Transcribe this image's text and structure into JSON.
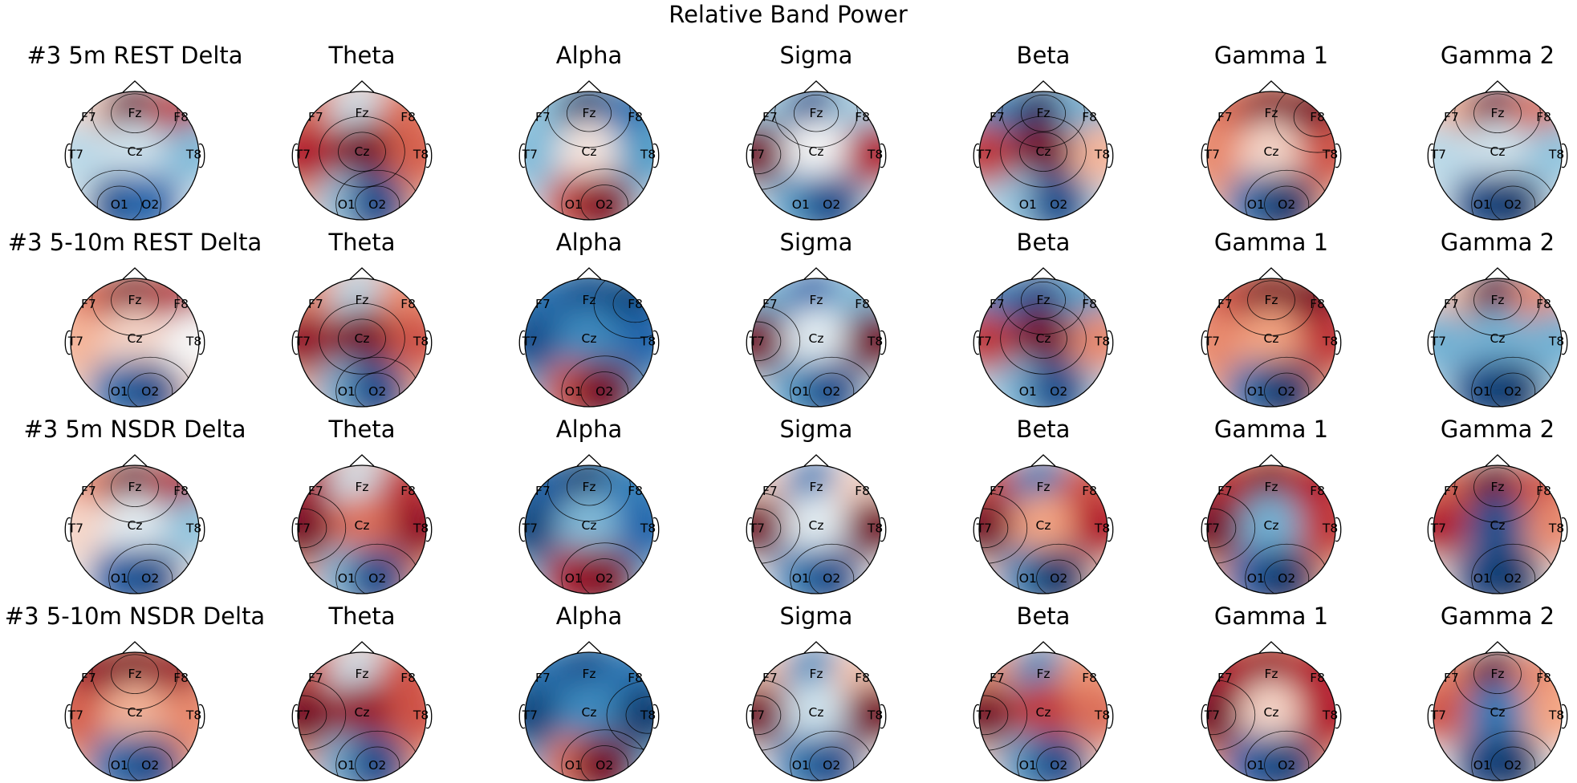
{
  "title": "Relative Band Power",
  "chart_data": {
    "type": "heatmap",
    "title": "Relative Band Power",
    "colormap": "RdBu_r",
    "colors": {
      "low": "#053061",
      "mid": "#f7f7f7",
      "high": "#67001f"
    },
    "bands": [
      "Delta",
      "Theta",
      "Alpha",
      "Sigma",
      "Beta",
      "Gamma 1",
      "Gamma 2"
    ],
    "channels": [
      "F7",
      "Fz",
      "F8",
      "T7",
      "Cz",
      "T8",
      "O1",
      "O2"
    ],
    "rows": [
      {
        "label": "#3 5m REST",
        "panel_titles": [
          "#3 5m REST Delta",
          "Theta",
          "Alpha",
          "Sigma",
          "Beta",
          "Gamma 1",
          "Gamma 2"
        ],
        "values": [
          [
            0.1,
            0.95,
            0.65,
            -0.15,
            -0.1,
            -0.3,
            -0.85,
            -0.75
          ],
          [
            0.45,
            -0.1,
            0.45,
            0.75,
            0.95,
            0.5,
            -0.25,
            -0.85
          ],
          [
            -0.25,
            -0.95,
            -0.7,
            -0.3,
            0.05,
            -0.45,
            0.55,
            0.9
          ],
          [
            -0.2,
            -0.85,
            -0.2,
            0.95,
            0.0,
            0.75,
            -0.45,
            -0.85
          ],
          [
            -0.55,
            -0.95,
            -0.35,
            0.65,
            0.95,
            0.2,
            -0.25,
            -0.85
          ],
          [
            0.45,
            0.9,
            0.95,
            0.35,
            0.1,
            0.55,
            -0.65,
            -0.95
          ],
          [
            0.2,
            0.9,
            0.45,
            -0.15,
            -0.1,
            -0.25,
            -0.85,
            -0.95
          ]
        ]
      },
      {
        "label": "#3 5-10m REST",
        "panel_titles": [
          "#3 5-10m REST Delta",
          "Theta",
          "Alpha",
          "Sigma",
          "Beta",
          "Gamma 1",
          "Gamma 2"
        ],
        "values": [
          [
            0.45,
            0.9,
            0.75,
            0.2,
            0.1,
            0.0,
            -0.65,
            -0.85
          ],
          [
            0.35,
            -0.15,
            0.35,
            0.85,
            0.95,
            0.55,
            -0.35,
            -0.85
          ],
          [
            -0.65,
            -0.85,
            -0.9,
            -0.85,
            -0.55,
            -0.75,
            0.55,
            0.95
          ],
          [
            -0.3,
            -0.75,
            -0.3,
            0.95,
            -0.05,
            0.95,
            -0.45,
            -0.85
          ],
          [
            -0.6,
            -0.85,
            -0.45,
            0.65,
            0.95,
            0.35,
            -0.35,
            -0.85
          ],
          [
            0.55,
            0.95,
            0.95,
            0.35,
            0.25,
            0.65,
            -0.65,
            -0.95
          ],
          [
            0.15,
            0.95,
            0.35,
            -0.35,
            -0.35,
            -0.35,
            -0.85,
            -0.95
          ]
        ]
      },
      {
        "label": "#3 5m NSDR",
        "panel_titles": [
          "#3 5m NSDR Delta",
          "Theta",
          "Alpha",
          "Sigma",
          "Beta",
          "Gamma 1",
          "Gamma 2"
        ],
        "values": [
          [
            0.35,
            0.95,
            0.75,
            0.1,
            -0.05,
            -0.25,
            -0.75,
            -0.85
          ],
          [
            0.75,
            -0.1,
            0.65,
            0.95,
            0.45,
            0.85,
            -0.3,
            -0.85
          ],
          [
            -0.75,
            -0.95,
            -0.6,
            -0.9,
            -0.3,
            -0.75,
            0.75,
            0.9
          ],
          [
            0.1,
            -0.65,
            0.1,
            0.95,
            -0.05,
            0.95,
            -0.55,
            -0.85
          ],
          [
            0.55,
            -0.65,
            0.55,
            0.95,
            0.25,
            0.75,
            -0.55,
            -0.95
          ],
          [
            0.65,
            0.9,
            0.75,
            0.95,
            -0.35,
            0.65,
            -0.75,
            -0.95
          ],
          [
            0.45,
            0.95,
            0.55,
            0.75,
            -0.85,
            0.35,
            -0.85,
            -0.95
          ]
        ]
      },
      {
        "label": "#3 5-10m NSDR",
        "panel_titles": [
          "#3 5-10m NSDR Delta",
          "Theta",
          "Alpha",
          "Sigma",
          "Beta",
          "Gamma 1",
          "Gamma 2"
        ],
        "values": [
          [
            0.85,
            0.95,
            0.85,
            0.5,
            0.2,
            0.35,
            -0.65,
            -0.85
          ],
          [
            0.55,
            -0.1,
            0.55,
            0.95,
            0.85,
            0.55,
            -0.35,
            -0.85
          ],
          [
            -0.65,
            -0.85,
            -0.65,
            -0.9,
            -0.55,
            -0.95,
            0.45,
            0.95
          ],
          [
            0.15,
            -0.55,
            0.15,
            0.95,
            -0.1,
            0.95,
            -0.55,
            -0.85
          ],
          [
            0.3,
            -0.55,
            0.3,
            0.95,
            0.65,
            0.45,
            -0.45,
            -0.85
          ],
          [
            0.75,
            0.85,
            0.75,
            0.95,
            0.1,
            0.75,
            -0.75,
            -0.9
          ],
          [
            0.35,
            0.95,
            0.35,
            0.55,
            -0.65,
            0.25,
            -0.85,
            -0.95
          ]
        ]
      }
    ]
  }
}
